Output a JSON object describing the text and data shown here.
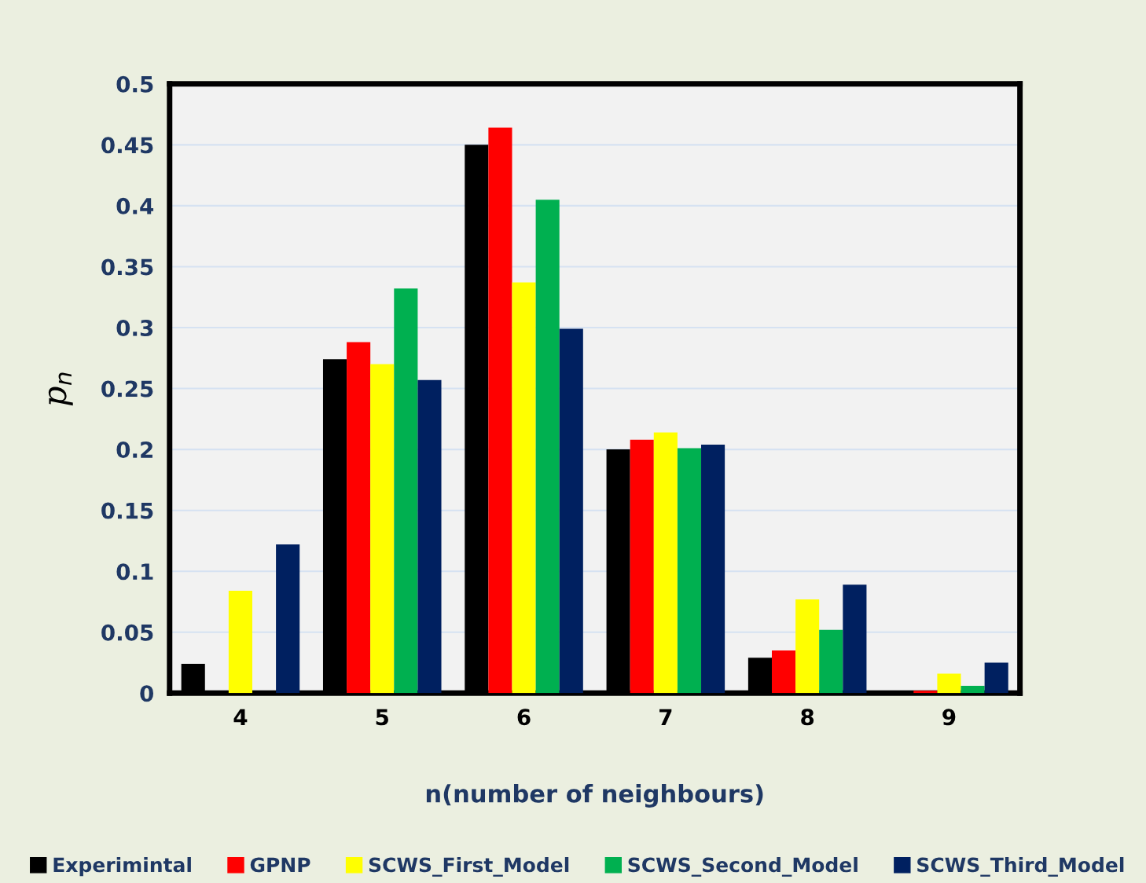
{
  "chart_data": {
    "type": "bar",
    "xlabel": "n(number of neighbours)",
    "ylabel": "p$_{n}$",
    "categories": [
      "4",
      "5",
      "6",
      "7",
      "8",
      "9"
    ],
    "series": [
      {
        "name": "Experimintal",
        "color": "#000000",
        "values": [
          0.024,
          0.274,
          0.45,
          0.2,
          0.029,
          0
        ]
      },
      {
        "name": "GPNP",
        "color": "#ff0000",
        "values": [
          0,
          0.288,
          0.464,
          0.208,
          0.035,
          0.002
        ]
      },
      {
        "name": "SCWS_First_Model",
        "color": "#ffff00",
        "values": [
          0.084,
          0.27,
          0.337,
          0.214,
          0.077,
          0.016
        ]
      },
      {
        "name": "SCWS_Second_Model",
        "color": "#00b050",
        "values": [
          0,
          0.332,
          0.405,
          0.201,
          0.052,
          0.006
        ]
      },
      {
        "name": "SCWS_Third_Model",
        "color": "#002060",
        "values": [
          0.122,
          0.257,
          0.299,
          0.204,
          0.089,
          0.025
        ]
      }
    ],
    "ylim": [
      0,
      0.5
    ],
    "yticks": [
      0,
      0.05,
      0.1,
      0.15,
      0.2,
      0.25,
      0.3,
      0.35,
      0.4,
      0.45,
      0.5
    ],
    "grid": "y",
    "legend": "bottom"
  }
}
